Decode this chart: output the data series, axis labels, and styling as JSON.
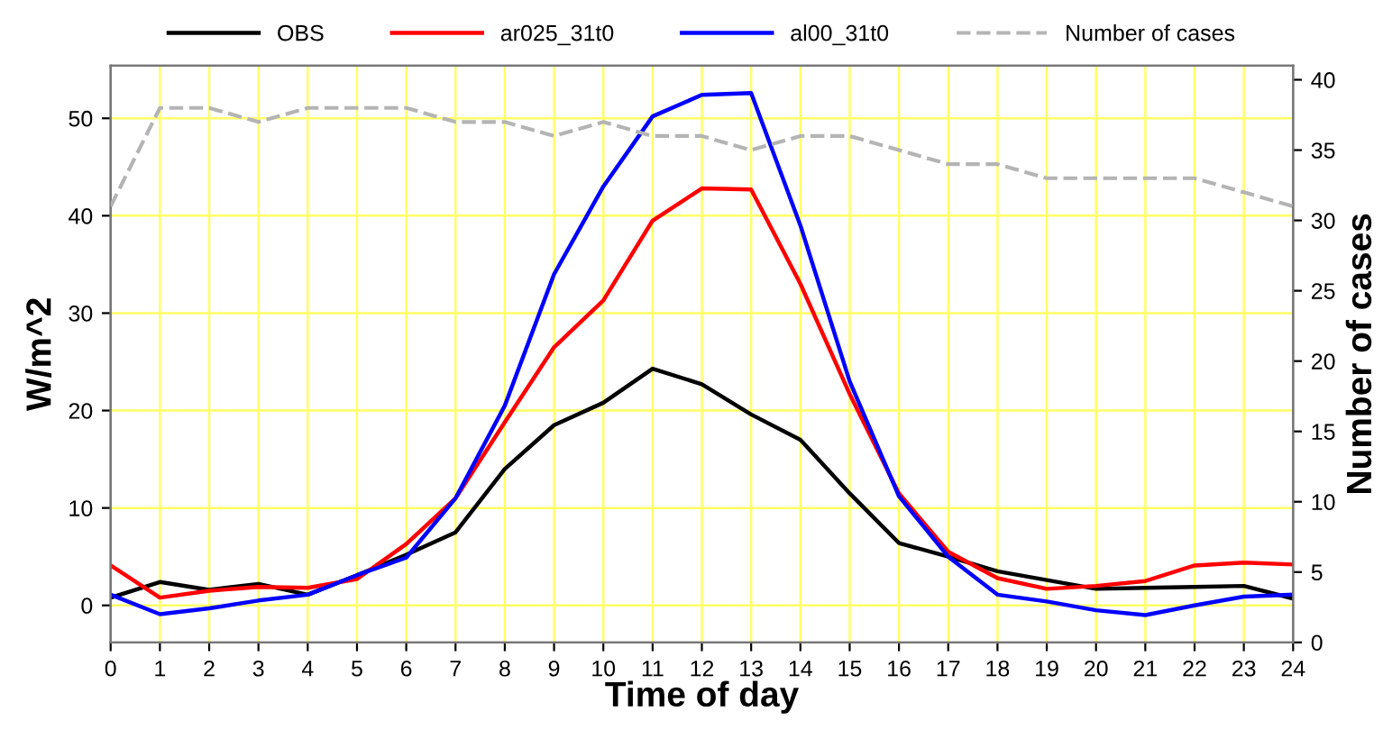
{
  "chart_data": {
    "type": "line",
    "xlabel": "Time of day",
    "ylabel": "W/m^2",
    "y2label": "Number of cases",
    "x": [
      0,
      1,
      2,
      3,
      4,
      5,
      6,
      7,
      8,
      9,
      10,
      11,
      12,
      13,
      14,
      15,
      16,
      17,
      18,
      19,
      20,
      21,
      22,
      23,
      24
    ],
    "xlim": [
      0,
      24
    ],
    "xticks": [
      0,
      1,
      2,
      3,
      4,
      5,
      6,
      7,
      8,
      9,
      10,
      11,
      12,
      13,
      14,
      15,
      16,
      17,
      18,
      19,
      20,
      21,
      22,
      23,
      24
    ],
    "ylim": [
      -3.8,
      55.4
    ],
    "yticks": [
      0,
      10,
      20,
      30,
      40,
      50
    ],
    "y2lim": [
      0,
      41
    ],
    "y2ticks": [
      0,
      5,
      10,
      15,
      20,
      25,
      30,
      35,
      40
    ],
    "grid": true,
    "legend": "top",
    "marker": "none",
    "series": [
      {
        "name": "OBS",
        "color": "#000000",
        "values": [
          0.8,
          2.4,
          1.6,
          2.2,
          1.1,
          3.1,
          5.2,
          7.5,
          14,
          18.5,
          20.8,
          24.3,
          22.7,
          19.6,
          17,
          11.5,
          6.4,
          5,
          3.5,
          2.6,
          1.7,
          1.8,
          1.9,
          2,
          0.7
        ]
      },
      {
        "name": "ar025_31t0",
        "color": "#ff0000",
        "values": [
          4.1,
          0.8,
          1.5,
          1.9,
          1.8,
          2.7,
          6.3,
          11,
          18.8,
          26.5,
          31.3,
          39.5,
          42.8,
          42.7,
          33,
          21.7,
          11.5,
          5.5,
          2.8,
          1.7,
          2,
          2.5,
          4.1,
          4.4,
          4.2
        ]
      },
      {
        "name": "al00_31t0",
        "color": "#0000ff",
        "values": [
          1.1,
          -0.9,
          -0.3,
          0.5,
          1.1,
          3.1,
          4.9,
          11,
          20.5,
          34,
          43,
          50.2,
          52.4,
          52.6,
          39,
          23,
          11.2,
          5,
          1.1,
          0.4,
          -0.5,
          -1,
          0,
          0.9,
          1.1
        ]
      },
      {
        "name": "Number of cases",
        "color": "#b4b4b4",
        "axis": "y2",
        "line_style": "dashed",
        "values": [
          31,
          38,
          38,
          37,
          38,
          38,
          38,
          37,
          37,
          36,
          37,
          36,
          36,
          35,
          36,
          36,
          35,
          34,
          34,
          33,
          33,
          33,
          33,
          32,
          31
        ]
      }
    ]
  }
}
